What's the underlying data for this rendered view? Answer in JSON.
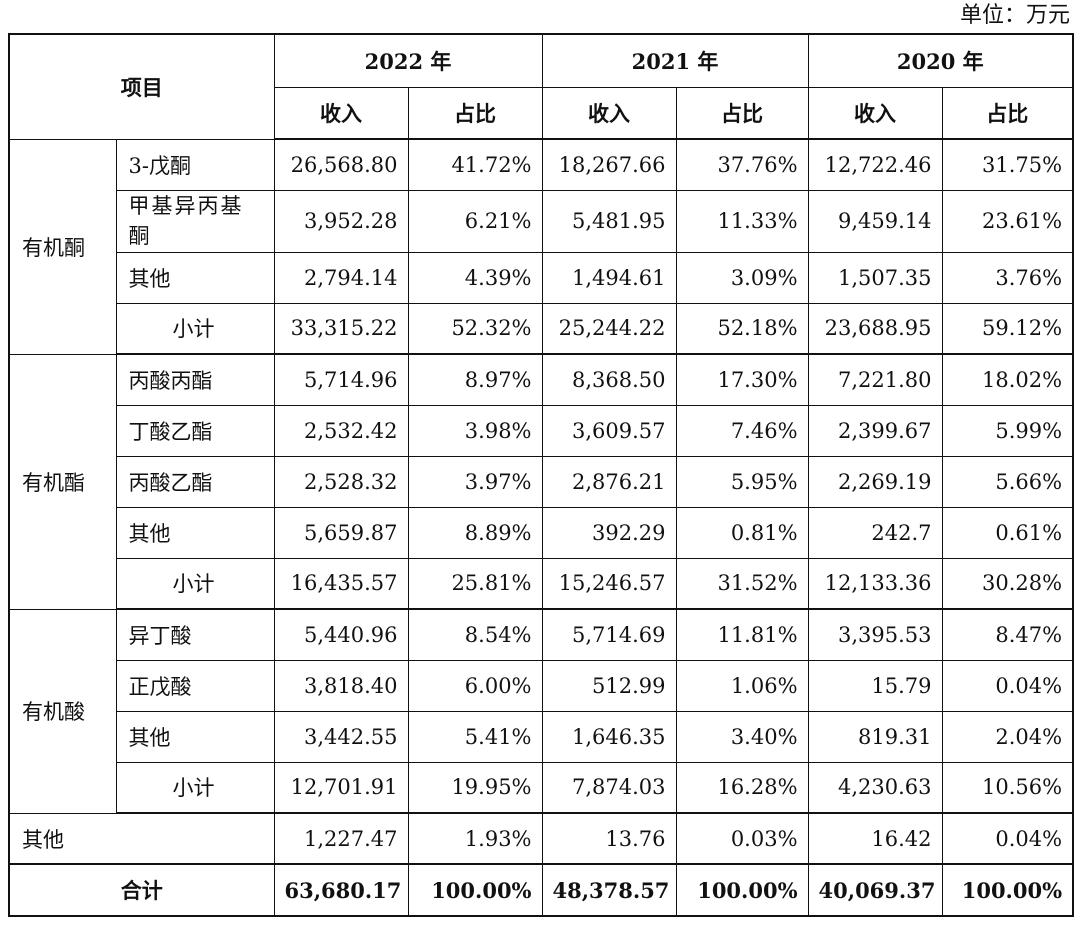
{
  "unit_label": "单位：万元",
  "header": {
    "item": "项目",
    "years": [
      "2022 年",
      "2021 年",
      "2020 年"
    ],
    "revenue": "收入",
    "share": "占比"
  },
  "groups": [
    {
      "name": "有机酮",
      "rows": [
        {
          "label": "3-戊酮",
          "v": [
            "26,568.80",
            "41.72%",
            "18,267.66",
            "37.76%",
            "12,722.46",
            "31.75%"
          ]
        },
        {
          "label": "甲基异丙基酮",
          "v": [
            "3,952.28",
            "6.21%",
            "5,481.95",
            "11.33%",
            "9,459.14",
            "23.61%"
          ]
        },
        {
          "label": "其他",
          "v": [
            "2,794.14",
            "4.39%",
            "1,494.61",
            "3.09%",
            "1,507.35",
            "3.76%"
          ]
        },
        {
          "label": "小计",
          "v": [
            "33,315.22",
            "52.32%",
            "25,244.22",
            "52.18%",
            "23,688.95",
            "59.12%"
          ]
        }
      ]
    },
    {
      "name": "有机酯",
      "rows": [
        {
          "label": "丙酸丙酯",
          "v": [
            "5,714.96",
            "8.97%",
            "8,368.50",
            "17.30%",
            "7,221.80",
            "18.02%"
          ]
        },
        {
          "label": "丁酸乙酯",
          "v": [
            "2,532.42",
            "3.98%",
            "3,609.57",
            "7.46%",
            "2,399.67",
            "5.99%"
          ]
        },
        {
          "label": "丙酸乙酯",
          "v": [
            "2,528.32",
            "3.97%",
            "2,876.21",
            "5.95%",
            "2,269.19",
            "5.66%"
          ]
        },
        {
          "label": "其他",
          "v": [
            "5,659.87",
            "8.89%",
            "392.29",
            "0.81%",
            "242.7",
            "0.61%"
          ]
        },
        {
          "label": "小计",
          "v": [
            "16,435.57",
            "25.81%",
            "15,246.57",
            "31.52%",
            "12,133.36",
            "30.28%"
          ]
        }
      ]
    },
    {
      "name": "有机酸",
      "rows": [
        {
          "label": "异丁酸",
          "v": [
            "5,440.96",
            "8.54%",
            "5,714.69",
            "11.81%",
            "3,395.53",
            "8.47%"
          ]
        },
        {
          "label": "正戊酸",
          "v": [
            "3,818.40",
            "6.00%",
            "512.99",
            "1.06%",
            "15.79",
            "0.04%"
          ]
        },
        {
          "label": "其他",
          "v": [
            "3,442.55",
            "5.41%",
            "1,646.35",
            "3.40%",
            "819.31",
            "2.04%"
          ]
        },
        {
          "label": "小计",
          "v": [
            "12,701.91",
            "19.95%",
            "7,874.03",
            "16.28%",
            "4,230.63",
            "10.56%"
          ]
        }
      ]
    }
  ],
  "other": {
    "label": "其他",
    "v": [
      "1,227.47",
      "1.93%",
      "13.76",
      "0.03%",
      "16.42",
      "0.04%"
    ]
  },
  "total": {
    "label": "合计",
    "v": [
      "63,680.17",
      "100.00%",
      "48,378.57",
      "100.00%",
      "40,069.37",
      "100.00%"
    ]
  }
}
